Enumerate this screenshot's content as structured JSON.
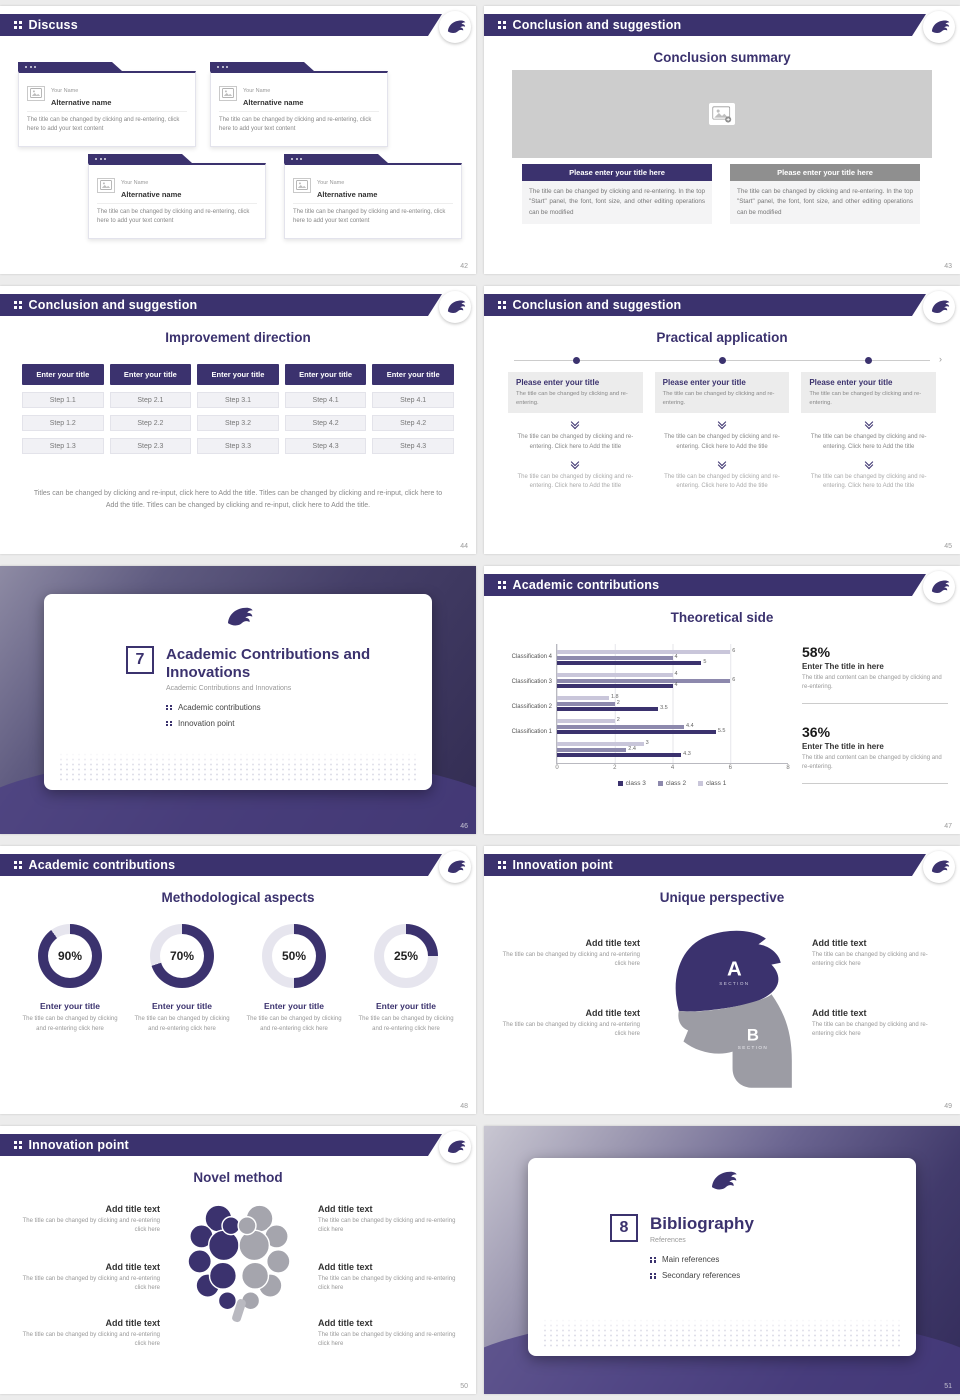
{
  "colors": {
    "accent": "#3b326e",
    "accent_mid": "#8d89ad",
    "accent_light": "#c9c6da",
    "gray_button": "#8f8f8f"
  },
  "slides": {
    "discuss": {
      "header": "Discuss",
      "page": "42",
      "card": {
        "name_label": "Your Name",
        "alt_name": "Alternative name",
        "desc": "The title can be changed by clicking and re-entering, click here to add your text content"
      }
    },
    "summary": {
      "header": "Conclusion and suggestion",
      "page": "43",
      "title": "Conclusion summary",
      "button_left": "Please enter your title here",
      "button_right": "Please enter your title here",
      "desc": "The title can be changed by clicking and re-entering. In the top \"Start\" panel, the font, font size, and other editing operations can be modified"
    },
    "improvement": {
      "header": "Conclusion and suggestion",
      "page": "44",
      "title": "Improvement direction",
      "columns": [
        {
          "title": "Enter your title",
          "steps": [
            "Step 1.1",
            "Step 1.2",
            "Step 1.3"
          ]
        },
        {
          "title": "Enter your title",
          "steps": [
            "Step 2.1",
            "Step 2.2",
            "Step 2.3"
          ]
        },
        {
          "title": "Enter your title",
          "steps": [
            "Step 3.1",
            "Step 3.2",
            "Step 3.3"
          ]
        },
        {
          "title": "Enter your title",
          "steps": [
            "Step 4.1",
            "Step 4.2",
            "Step 4.3"
          ]
        },
        {
          "title": "Enter your title",
          "steps": [
            "Step 4.1",
            "Step 4.2",
            "Step 4.3"
          ]
        }
      ],
      "footer": "Titles can be changed by clicking and re-input, click here to Add the title. Titles can be changed by clicking and re-input, click here to Add the title. Titles can be changed by clicking and re-input, click here to Add the title."
    },
    "practical": {
      "header": "Conclusion and suggestion",
      "page": "45",
      "title": "Practical application",
      "column": {
        "title": "Please enter your title",
        "subtitle": "The title can be changed by clicking and re-entering.",
        "mid_text": "The title can be changed by clicking and re-entering. Click here to Add the title",
        "bottom_text": "The title can be changed by clicking and re-entering. Click here to Add the title"
      }
    },
    "cover7": {
      "page": "46",
      "number": "7",
      "title": "Academic Contributions and Innovations",
      "subtitle": "Academic Contributions and Innovations",
      "items": [
        "Academic contributions",
        "Innovation point"
      ]
    },
    "theoretical": {
      "header": "Academic contributions",
      "page": "47",
      "title": "Theoretical side",
      "stats": [
        {
          "pct": "58%",
          "title": "Enter The title in here",
          "desc": "The title and content can be changed by clicking and re-entering."
        },
        {
          "pct": "36%",
          "title": "Enter The title in here",
          "desc": "The title and content can be changed by clicking and re-entering."
        }
      ]
    },
    "methodological": {
      "header": "Academic contributions",
      "page": "48",
      "title": "Methodological aspects",
      "item_title": "Enter your title",
      "item_desc": "The title can be changed by clicking and re-entering click here",
      "items": [
        {
          "pct": 90,
          "label": "90%"
        },
        {
          "pct": 70,
          "label": "70%"
        },
        {
          "pct": 50,
          "label": "50%"
        },
        {
          "pct": 25,
          "label": "25%"
        }
      ]
    },
    "unique": {
      "header": "Innovation point",
      "page": "49",
      "title": "Unique perspective",
      "block_title": "Add title text",
      "block_desc": "The title can be changed by clicking and re-entering click here",
      "section_a": "A",
      "section_b": "B",
      "section_label": "SECTION"
    },
    "novel": {
      "header": "Innovation point",
      "page": "50",
      "title": "Novel method",
      "block_title": "Add title text",
      "block_desc": "The title can be changed by clicking and re-entering click here"
    },
    "cover8": {
      "page": "51",
      "number": "8",
      "title": "Bibliography",
      "subtitle": "References",
      "items": [
        "Main references",
        "Secondary references"
      ]
    }
  },
  "chart_data": {
    "type": "bar",
    "orientation": "horizontal",
    "title": "Theoretical side",
    "categories": [
      "Classification 4",
      "Classification 3",
      "Classification 2",
      "Classification 1",
      ""
    ],
    "series": [
      {
        "name": "class 1",
        "values": [
          6,
          4,
          1.8,
          2,
          3
        ]
      },
      {
        "name": "class 2",
        "values": [
          4,
          6,
          2,
          4.4,
          2.4
        ]
      },
      {
        "name": "class 3",
        "values": [
          5,
          4,
          3.5,
          5.5,
          4.3
        ]
      }
    ],
    "colors": {
      "class 1": "#c9c6da",
      "class 2": "#8d89ad",
      "class 3": "#3b326e"
    },
    "xlim": [
      0,
      8
    ],
    "xticks": [
      "0",
      "2",
      "4",
      "6",
      "8"
    ],
    "legend": [
      "class 3",
      "class 2",
      "class 1"
    ],
    "legend_position": "bottom"
  }
}
